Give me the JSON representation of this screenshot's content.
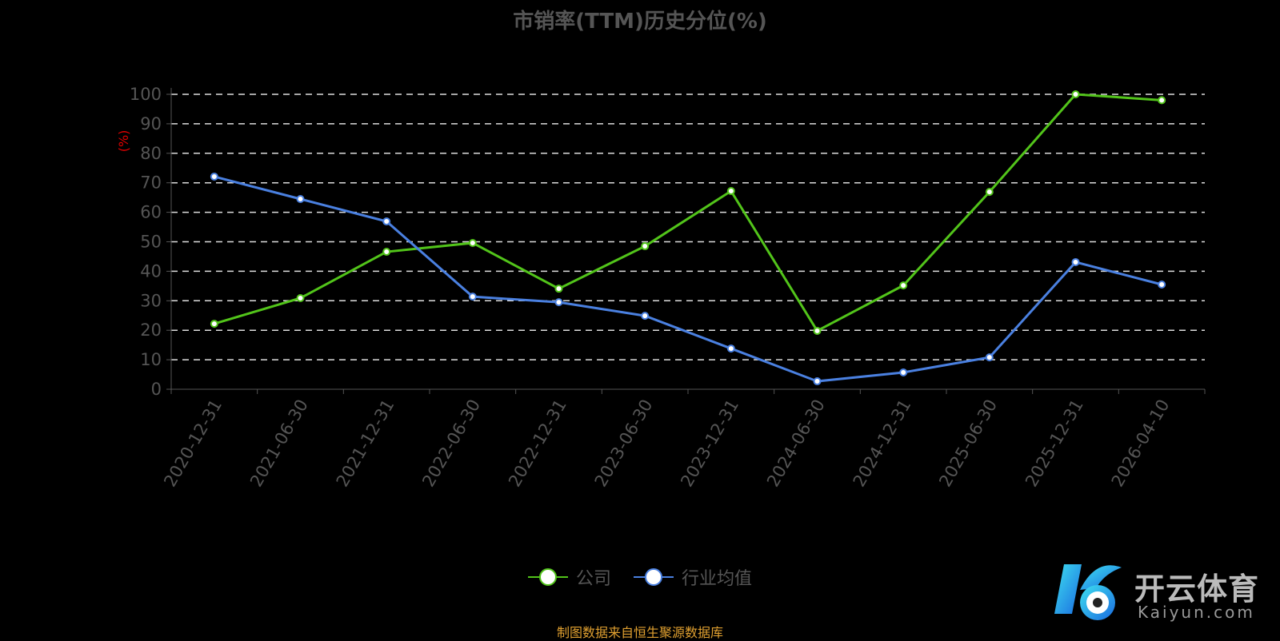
{
  "chart_data": {
    "type": "line",
    "title": "市销率(TTM)历史分位(%)",
    "ylabel": "(%)",
    "ylim": [
      0,
      100
    ],
    "yticks": [
      0,
      10,
      20,
      30,
      40,
      50,
      60,
      70,
      80,
      90,
      100
    ],
    "grid": true,
    "legend_placement": "bottom",
    "categories": [
      "2020-12-31",
      "2021-06-30",
      "2021-12-31",
      "2022-06-30",
      "2022-12-31",
      "2023-06-30",
      "2023-12-31",
      "2024-06-30",
      "2024-12-31",
      "2025-06-30",
      "2025-12-31",
      "2026-04-10"
    ],
    "series": [
      {
        "name": "公司",
        "color": "#52c41a",
        "values": [
          22.2,
          30.9,
          46.6,
          49.6,
          34.1,
          48.5,
          67.2,
          19.8,
          35.2,
          66.9,
          100,
          98.0
        ]
      },
      {
        "name": "行业均值",
        "color": "#4a80e0",
        "values": [
          72.1,
          64.5,
          56.9,
          31.4,
          29.5,
          24.9,
          13.8,
          2.7,
          5.7,
          10.8,
          43.1,
          35.5
        ]
      }
    ]
  },
  "footer": "制图数据来自恒生聚源数据库",
  "watermark": {
    "cn": "开云体育",
    "en": "Kaiyun.com"
  }
}
